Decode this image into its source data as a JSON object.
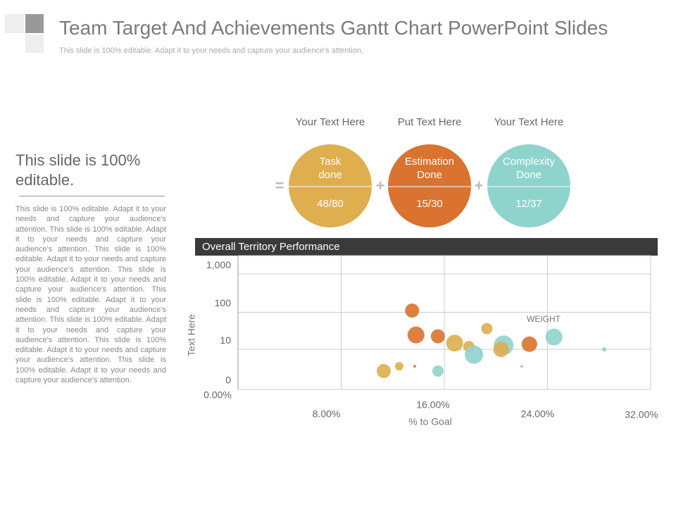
{
  "header": {
    "title": "Team Target And Achievements Gantt Chart PowerPoint Slides",
    "subtitle": "This slide is 100% editable. Adapt it to your needs and capture your audience's attention."
  },
  "sidebar": {
    "heading": "This slide is 100% editable.",
    "body": "This slide is 100% editable. Adapt it to your needs and capture your audience's attention. This slide is 100% editable. Adapt it to your needs and capture your audience's attention. This slide is 100% editable. Adapt it to your needs and capture your audience's attention. This slide is 100% editable. Adapt it to your needs and capture your audience's attention. This slide is 100% editable. Adapt it to your needs and capture your audience's attention. This slide is 100% editable. Adapt it to your needs and capture your audience's attention. This slide is 100% editable. Adapt it to your needs and capture your audience's attention. This slide is 100% editable. Adapt it to your needs and capture your audience's attention."
  },
  "metrics": [
    {
      "heading": "Your Text Here",
      "label": "Task done",
      "value": "48/80",
      "color": "#deae4f"
    },
    {
      "heading": "Put Text Here",
      "label": "Estimation Done",
      "value": "15/30",
      "color": "#d9732f"
    },
    {
      "heading": "Your Text Here",
      "label": "Complexity Done",
      "value": "12/37",
      "color": "#8fd3cd"
    }
  ],
  "operators": [
    "=",
    "+",
    "+"
  ],
  "chart_data": {
    "type": "scatter",
    "title": "Overall Territory Performance",
    "x_label": "% to Goal",
    "y_label": "Text Here",
    "annotation": "WEIGHT",
    "x": [
      13.5,
      13.8,
      15.5,
      16.8,
      17.9,
      19.3,
      18.3,
      20.6,
      20.4,
      22.6,
      24.5,
      28.4,
      22.0,
      15.5,
      13.7,
      12.5,
      11.3
    ],
    "values": [
      111,
      25,
      23,
      15,
      12,
      37,
      7,
      13,
      10,
      14,
      22,
      10,
      3,
      2,
      3,
      3,
      2
    ],
    "sizes": [
      10,
      12,
      10,
      12,
      8,
      8,
      13,
      14,
      11,
      11,
      12,
      3,
      2,
      8,
      2,
      6,
      10
    ],
    "colors": [
      "#d9732f",
      "#d9732f",
      "#d9732f",
      "#deae4f",
      "#deae4f",
      "#deae4f",
      "#8fd3cd",
      "#8fd3cd",
      "#deae4f",
      "#d9732f",
      "#8fd3cd",
      "#8fd3cd",
      "#8fd3cd",
      "#8fd3cd",
      "#d9732f",
      "#deae4f",
      "#deae4f"
    ],
    "xlim": [
      0,
      32
    ],
    "xticks": [
      {
        "value": 0,
        "label": "0.00%"
      },
      {
        "value": 8,
        "label": "8.00%"
      },
      {
        "value": 16,
        "label": "16.00%"
      },
      {
        "value": 24,
        "label": "24.00%"
      },
      {
        "value": 32,
        "label": "32.00%"
      }
    ],
    "ylim": [
      0,
      3000
    ],
    "yscale": "symlog",
    "yticks": [
      0,
      10,
      100,
      {
        "value": 1000,
        "label": "1,000"
      }
    ],
    "grid": true
  }
}
